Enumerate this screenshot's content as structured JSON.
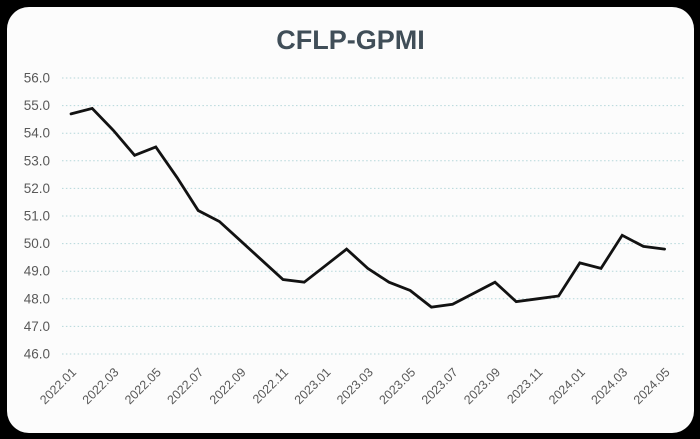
{
  "chart": {
    "title": "CFLP-GPMI"
  },
  "chart_data": {
    "type": "line",
    "title": "CFLP-GPMI",
    "x": [
      "2022.01",
      "2022.02",
      "2022.03",
      "2022.04",
      "2022.05",
      "2022.06",
      "2022.07",
      "2022.08",
      "2022.09",
      "2022.10",
      "2022.11",
      "2022.12",
      "2023.01",
      "2023.02",
      "2023.03",
      "2023.04",
      "2023.05",
      "2023.06",
      "2023.07",
      "2023.08",
      "2023.09",
      "2023.10",
      "2023.11",
      "2023.12",
      "2024.01",
      "2024.02",
      "2024.03",
      "2024.04",
      "2024.05"
    ],
    "values": [
      54.7,
      54.9,
      54.1,
      53.2,
      53.5,
      52.4,
      51.2,
      50.8,
      50.1,
      49.4,
      48.7,
      48.6,
      49.2,
      49.8,
      49.1,
      48.6,
      48.3,
      47.7,
      47.8,
      48.2,
      48.6,
      47.9,
      48.0,
      48.1,
      49.3,
      49.1,
      50.3,
      49.9,
      49.8
    ],
    "x_tick_labels": [
      "2022.01",
      "2022.03",
      "2022.05",
      "2022.07",
      "2022.09",
      "2022.11",
      "2023.01",
      "2023.03",
      "2023.05",
      "2023.07",
      "2023.09",
      "2023.11",
      "2024.01",
      "2024.03",
      "2024.05"
    ],
    "y_ticks": [
      "56.0",
      "55.0",
      "54.0",
      "53.0",
      "52.0",
      "51.0",
      "50.0",
      "49.0",
      "48.0",
      "47.0",
      "46.0"
    ],
    "ylim": [
      46.0,
      56.0
    ],
    "xlabel": "",
    "ylabel": "",
    "legend": "none",
    "grid": "horizontal-dotted",
    "colors": {
      "line": "#121212",
      "gridline": "#b4d6d9",
      "tick_label": "#595959",
      "title": "#404e58",
      "card_background": "#fcfcfc",
      "page_background": "#000000"
    }
  }
}
